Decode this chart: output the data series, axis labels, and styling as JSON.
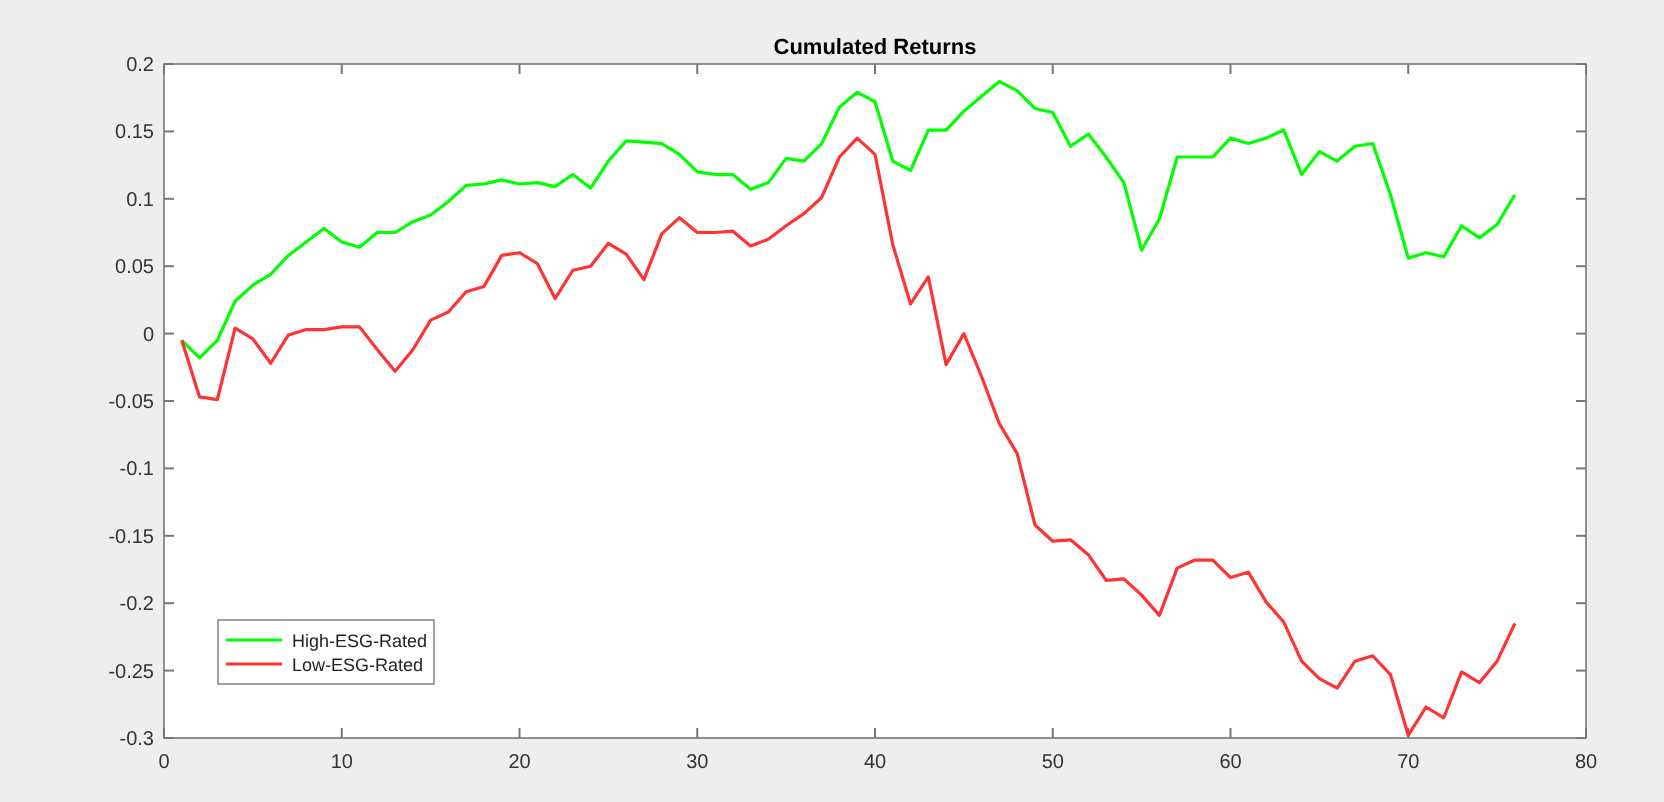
{
  "chart_data": {
    "type": "line",
    "title": "Cumulated Returns",
    "x": [
      1,
      2,
      3,
      4,
      5,
      6,
      7,
      8,
      9,
      10,
      11,
      12,
      13,
      14,
      15,
      16,
      17,
      18,
      19,
      20,
      21,
      22,
      23,
      24,
      25,
      26,
      27,
      28,
      29,
      30,
      31,
      32,
      33,
      34,
      35,
      36,
      37,
      38,
      39,
      40,
      41,
      42,
      43,
      44,
      45,
      46,
      47,
      48,
      49,
      50,
      51,
      52,
      53,
      54,
      55,
      56,
      57,
      58,
      59,
      60,
      61,
      62,
      63,
      64,
      65,
      66,
      67,
      68,
      69,
      70,
      71,
      72,
      73,
      74,
      75,
      76
    ],
    "series": [
      {
        "name": "High-ESG-Rated",
        "color": "#00ff00",
        "values": [
          -0.005,
          -0.018,
          -0.005,
          0.024,
          0.036,
          0.044,
          0.058,
          0.068,
          0.078,
          0.068,
          0.064,
          0.075,
          0.075,
          0.083,
          0.088,
          0.098,
          0.11,
          0.111,
          0.114,
          0.111,
          0.112,
          0.109,
          0.118,
          0.108,
          0.128,
          0.143,
          0.142,
          0.141,
          0.133,
          0.12,
          0.118,
          0.118,
          0.107,
          0.112,
          0.13,
          0.128,
          0.141,
          0.168,
          0.179,
          0.172,
          0.128,
          0.121,
          0.151,
          0.151,
          0.165,
          0.176,
          0.187,
          0.18,
          0.167,
          0.164,
          0.139,
          0.148,
          0.131,
          0.112,
          0.062,
          0.085,
          0.131,
          0.131,
          0.131,
          0.145,
          0.141,
          0.145,
          0.151,
          0.118,
          0.135,
          0.128,
          0.139,
          0.141,
          0.103,
          0.056,
          0.06,
          0.057,
          0.08,
          0.071,
          0.081,
          0.103
        ]
      },
      {
        "name": "Low-ESG-Rated",
        "color": "#ff3333",
        "values": [
          -0.005,
          -0.047,
          -0.049,
          0.004,
          -0.004,
          -0.022,
          -0.001,
          0.003,
          0.003,
          0.005,
          0.005,
          -0.012,
          -0.028,
          -0.012,
          0.01,
          0.016,
          0.031,
          0.035,
          0.058,
          0.06,
          0.052,
          0.026,
          0.047,
          0.05,
          0.067,
          0.059,
          0.04,
          0.074,
          0.086,
          0.075,
          0.075,
          0.076,
          0.065,
          0.07,
          0.08,
          0.089,
          0.101,
          0.131,
          0.145,
          0.133,
          0.066,
          0.022,
          0.042,
          -0.023,
          0.0,
          -0.032,
          -0.067,
          -0.089,
          -0.142,
          -0.154,
          -0.153,
          -0.164,
          -0.183,
          -0.182,
          -0.194,
          -0.209,
          -0.174,
          -0.168,
          -0.168,
          -0.181,
          -0.177,
          -0.199,
          -0.214,
          -0.243,
          -0.256,
          -0.263,
          -0.243,
          -0.239,
          -0.253,
          -0.298,
          -0.277,
          -0.285,
          -0.251,
          -0.259,
          -0.243,
          -0.215
        ]
      }
    ],
    "xlim": [
      0,
      80
    ],
    "xticks": [
      0,
      10,
      20,
      30,
      40,
      50,
      60,
      70,
      80
    ],
    "ylim": [
      -0.3,
      0.2
    ],
    "yticks": [
      {
        "value": -0.3,
        "label": "-0.3"
      },
      {
        "value": -0.25,
        "label": "-0.25"
      },
      {
        "value": -0.2,
        "label": "-0.2"
      },
      {
        "value": -0.15,
        "label": "-0.15"
      },
      {
        "value": -0.1,
        "label": "-0.1"
      },
      {
        "value": -0.05,
        "label": "-0.05"
      },
      {
        "value": 0,
        "label": "0"
      },
      {
        "value": 0.05,
        "label": "0.05"
      },
      {
        "value": 0.1,
        "label": "0.1"
      },
      {
        "value": 0.15,
        "label": "0.15"
      },
      {
        "value": 0.2,
        "label": "0.2"
      }
    ],
    "legend": "bottom left",
    "grid": false,
    "marker": "none",
    "line_style": "solid"
  }
}
